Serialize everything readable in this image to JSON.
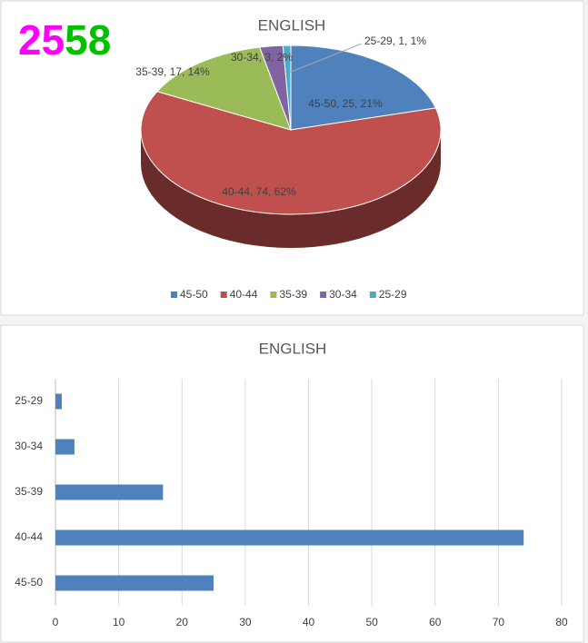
{
  "badge_parts": [
    {
      "text": "25",
      "color": "#ff00ff"
    },
    {
      "text": "58",
      "color": "#00c000"
    }
  ],
  "chart_data": [
    {
      "type": "pie",
      "title": "ENGLISH",
      "3d": true,
      "legend": "bottom",
      "categories": [
        "45-50",
        "40-44",
        "35-39",
        "30-34",
        "25-29"
      ],
      "values": [
        25,
        74,
        17,
        3,
        1
      ],
      "value_labels": [
        "45-50, 25, 21%",
        "40-44, 74, 62%",
        "35-39, 17, 14%",
        "30-34, 3, 2%",
        "25-29, 1, 1%"
      ],
      "colors": [
        "#4f81bd",
        "#c0504d",
        "#9bbb59",
        "#8064a2",
        "#4bacc6"
      ]
    },
    {
      "type": "bar",
      "orientation": "horizontal",
      "title": "ENGLISH",
      "categories": [
        "45-50",
        "40-44",
        "35-39",
        "30-34",
        "25-29"
      ],
      "values": [
        25,
        74,
        17,
        3,
        1
      ],
      "color": "#4f81bd",
      "xlim": [
        0,
        80
      ],
      "xticks": [
        0,
        10,
        20,
        30,
        40,
        50,
        60,
        70,
        80
      ],
      "grid": true
    }
  ]
}
